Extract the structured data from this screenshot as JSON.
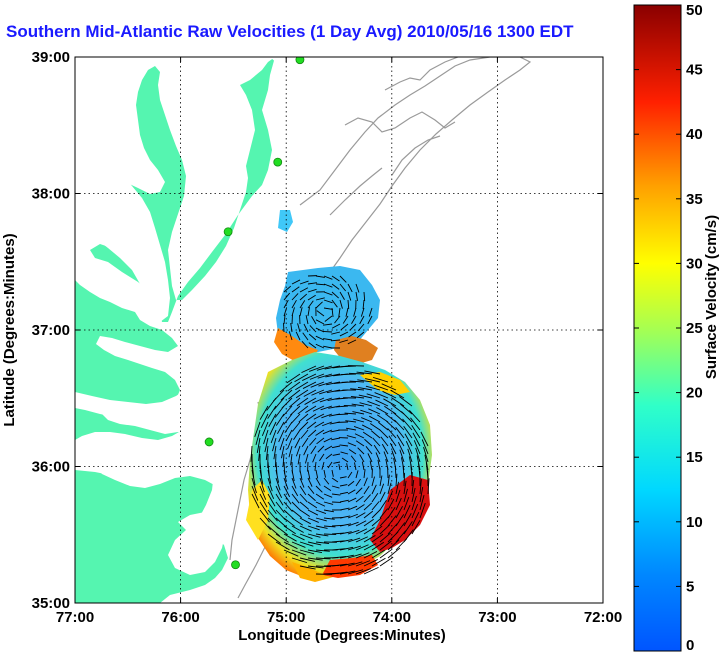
{
  "title": "Southern Mid-Atlantic Raw Velocities (1 Day Avg) 2010/05/16 1300 EDT",
  "map": {
    "x_axis_label": "Longitude (Degrees:Minutes)",
    "y_axis_label": "Latitude (Degrees:Minutes)",
    "x_ticks": [
      "77:00",
      "76:00",
      "75:00",
      "74:00",
      "73:00",
      "72:00"
    ],
    "y_ticks": [
      "39:00",
      "38:00",
      "37:00",
      "36:00",
      "35:00"
    ],
    "lon_range": [
      -77,
      -72
    ],
    "lat_range": [
      35,
      39
    ],
    "grid": true,
    "land_color": "#55f5b0",
    "bathymetry_color": "#9a9a9a",
    "station_color": "#22dd22",
    "stations": [
      {
        "lon": -74.87,
        "lat": 38.98
      },
      {
        "lon": -75.08,
        "lat": 38.23
      },
      {
        "lon": -75.55,
        "lat": 37.72
      },
      {
        "lon": -75.73,
        "lat": 36.18
      },
      {
        "lon": -75.48,
        "lat": 35.28
      }
    ]
  },
  "colorbar": {
    "label": "Surface Velocity (cm/s)",
    "ticks": [
      "0",
      "5",
      "10",
      "15",
      "20",
      "25",
      "30",
      "35",
      "40",
      "45",
      "50"
    ],
    "range": [
      0,
      50
    ],
    "colormap": "jet"
  }
}
